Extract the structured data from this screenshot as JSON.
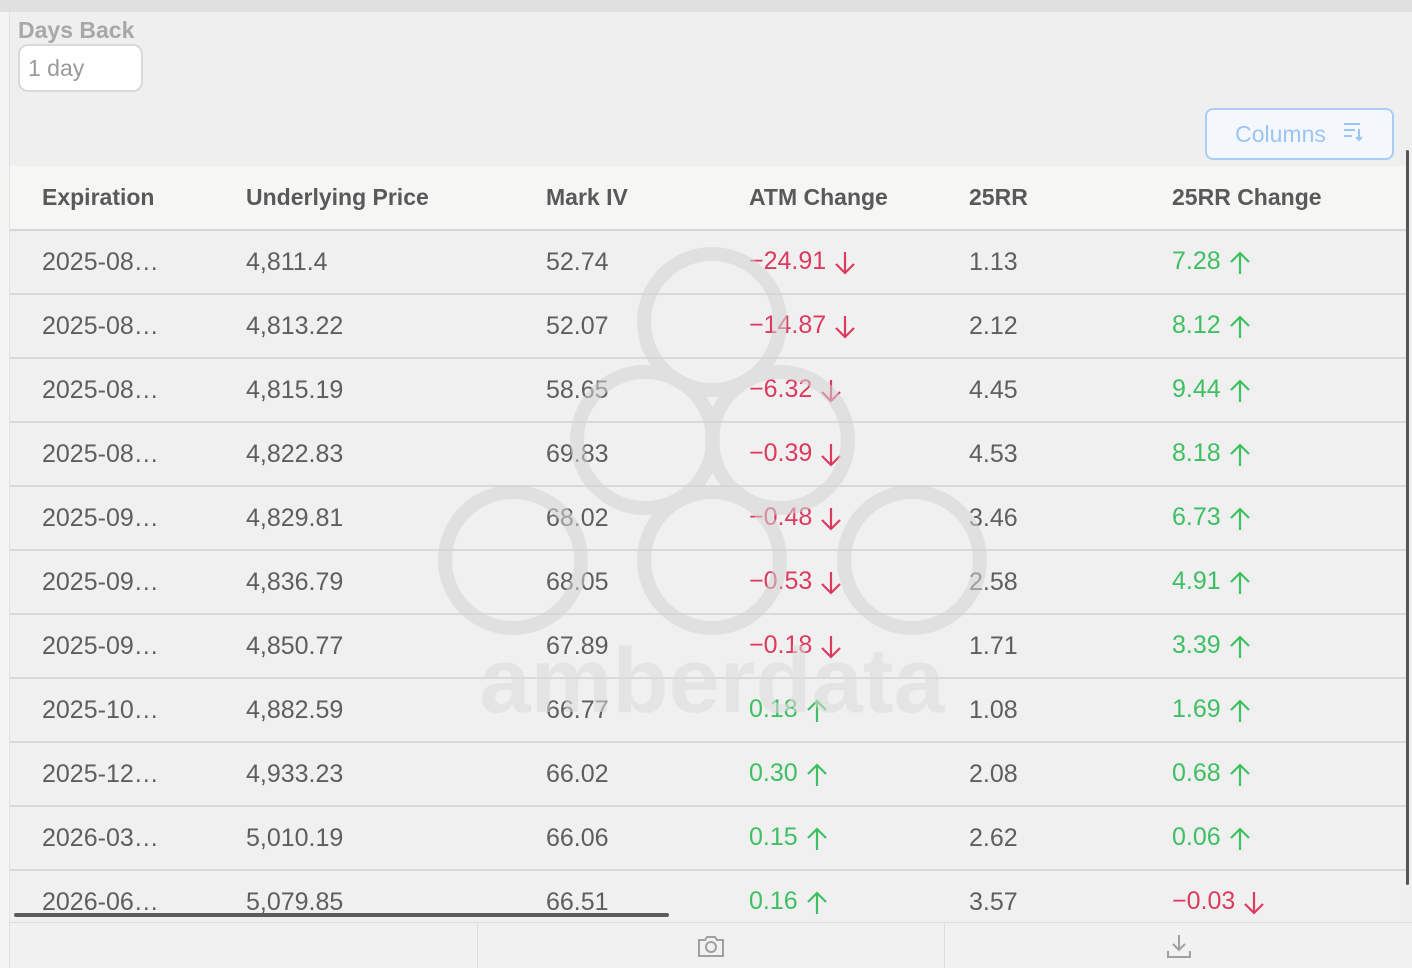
{
  "filters": {
    "days_back_label": "Days Back",
    "days_back_value": "1 day"
  },
  "toolbar": {
    "columns_label": "Columns",
    "columns_icon": "sort-lines-icon"
  },
  "table": {
    "headers": [
      "Expiration",
      "Underlying Price",
      "Mark IV",
      "ATM Change",
      "25RR",
      "25RR Change"
    ],
    "rows": [
      {
        "expiration": "2025-08…",
        "underlying": "4,811.4",
        "mark_iv": "52.74",
        "atm_change": "-24.91",
        "atm_dir": "down",
        "rr25": "1.13",
        "rr25_change": "7.28",
        "rr_dir": "up"
      },
      {
        "expiration": "2025-08…",
        "underlying": "4,813.22",
        "mark_iv": "52.07",
        "atm_change": "-14.87",
        "atm_dir": "down",
        "rr25": "2.12",
        "rr25_change": "8.12",
        "rr_dir": "up"
      },
      {
        "expiration": "2025-08…",
        "underlying": "4,815.19",
        "mark_iv": "58.65",
        "atm_change": "-6.32",
        "atm_dir": "down",
        "rr25": "4.45",
        "rr25_change": "9.44",
        "rr_dir": "up"
      },
      {
        "expiration": "2025-08…",
        "underlying": "4,822.83",
        "mark_iv": "69.83",
        "atm_change": "-0.39",
        "atm_dir": "down",
        "rr25": "4.53",
        "rr25_change": "8.18",
        "rr_dir": "up"
      },
      {
        "expiration": "2025-09…",
        "underlying": "4,829.81",
        "mark_iv": "68.02",
        "atm_change": "-0.48",
        "atm_dir": "down",
        "rr25": "3.46",
        "rr25_change": "6.73",
        "rr_dir": "up"
      },
      {
        "expiration": "2025-09…",
        "underlying": "4,836.79",
        "mark_iv": "68.05",
        "atm_change": "-0.53",
        "atm_dir": "down",
        "rr25": "2.58",
        "rr25_change": "4.91",
        "rr_dir": "up"
      },
      {
        "expiration": "2025-09…",
        "underlying": "4,850.77",
        "mark_iv": "67.89",
        "atm_change": "-0.18",
        "atm_dir": "down",
        "rr25": "1.71",
        "rr25_change": "3.39",
        "rr_dir": "up"
      },
      {
        "expiration": "2025-10…",
        "underlying": "4,882.59",
        "mark_iv": "66.77",
        "atm_change": "0.18",
        "atm_dir": "up",
        "rr25": "1.08",
        "rr25_change": "1.69",
        "rr_dir": "up"
      },
      {
        "expiration": "2025-12…",
        "underlying": "4,933.23",
        "mark_iv": "66.02",
        "atm_change": "0.30",
        "atm_dir": "up",
        "rr25": "2.08",
        "rr25_change": "0.68",
        "rr_dir": "up"
      },
      {
        "expiration": "2026-03…",
        "underlying": "5,010.19",
        "mark_iv": "66.06",
        "atm_change": "0.15",
        "atm_dir": "up",
        "rr25": "2.62",
        "rr25_change": "0.06",
        "rr_dir": "up"
      },
      {
        "expiration": "2026-06…",
        "underlying": "5,079.85",
        "mark_iv": "66.51",
        "atm_change": "0.16",
        "atm_dir": "up",
        "rr25": "3.57",
        "rr25_change": "-0.03",
        "rr_dir": "down"
      }
    ]
  },
  "watermark": {
    "text": "amberdata"
  },
  "footer": {
    "icons": [
      "camera-icon",
      "download-icon"
    ]
  },
  "colors": {
    "negative": "#dc3b5f",
    "positive": "#3fbf63",
    "accent": "#a9cdf6"
  }
}
